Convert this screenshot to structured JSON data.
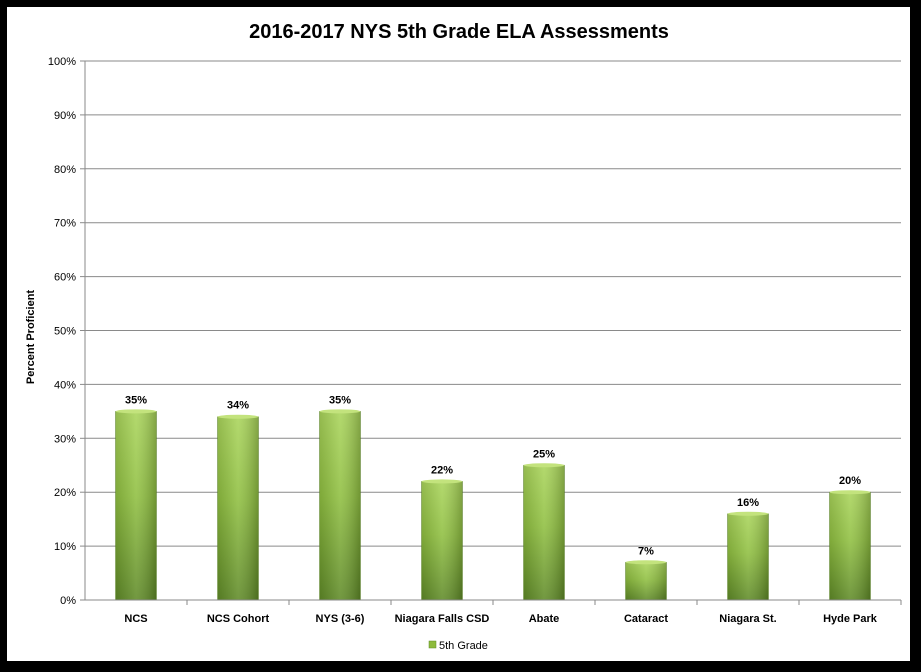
{
  "chart_data": {
    "type": "bar",
    "title": "2016-2017 NYS 5th Grade ELA Assessments",
    "xlabel": "",
    "ylabel": "Percent Proficient",
    "categories": [
      "NCS",
      "NCS Cohort",
      "NYS (3-6)",
      "Niagara Falls CSD",
      "Abate",
      "Cataract",
      "Niagara St.",
      "Hyde Park"
    ],
    "series": [
      {
        "name": "5th Grade",
        "values": [
          35,
          34,
          35,
          22,
          25,
          7,
          16,
          20
        ],
        "color": "#8dbb3c"
      }
    ],
    "data_labels": [
      "35%",
      "34%",
      "35%",
      "22%",
      "25%",
      "7%",
      "16%",
      "20%"
    ],
    "ylim": [
      0,
      100
    ],
    "yticks": [
      0,
      10,
      20,
      30,
      40,
      50,
      60,
      70,
      80,
      90,
      100
    ],
    "ytick_labels": [
      "0%",
      "10%",
      "20%",
      "30%",
      "40%",
      "50%",
      "60%",
      "70%",
      "80%",
      "90%",
      "100%"
    ],
    "grid": true,
    "legend_position": "bottom"
  }
}
